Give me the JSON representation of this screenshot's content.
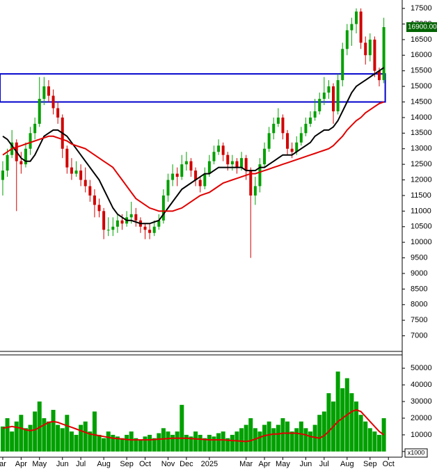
{
  "chart_data": [
    {
      "type": "candlestick",
      "ylim": [
        6500,
        17770
      ],
      "yticks": [
        7000,
        7500,
        8000,
        8500,
        9000,
        9500,
        10000,
        10500,
        11000,
        11500,
        12000,
        12500,
        13000,
        13500,
        14000,
        14500,
        15000,
        15500,
        16000,
        16500,
        17000,
        17500
      ],
      "xlim": [
        -0.6,
        87
      ],
      "up_color": "#00a000",
      "down_color": "#d00000",
      "ohlc": [
        [
          12000,
          12600,
          11500,
          12300
        ],
        [
          12300,
          13000,
          12100,
          12800
        ],
        [
          12800,
          13600,
          12700,
          13200
        ],
        [
          13200,
          13300,
          11000,
          12600
        ],
        [
          12600,
          12900,
          12200,
          12500
        ],
        [
          12500,
          13200,
          12400,
          13000
        ],
        [
          13000,
          13700,
          12800,
          13500
        ],
        [
          13500,
          14000,
          13300,
          13800
        ],
        [
          13800,
          15300,
          13700,
          14600
        ],
        [
          14600,
          15300,
          14400,
          15000
        ],
        [
          15000,
          15200,
          14500,
          14700
        ],
        [
          14700,
          14900,
          14100,
          14300
        ],
        [
          14300,
          14500,
          13800,
          14000
        ],
        [
          14000,
          14100,
          12700,
          13000
        ],
        [
          13000,
          13100,
          12200,
          12400
        ],
        [
          12400,
          12700,
          12000,
          12200
        ],
        [
          12200,
          12600,
          12100,
          12300
        ],
        [
          12300,
          12500,
          11800,
          12000
        ],
        [
          12000,
          12400,
          11600,
          11800
        ],
        [
          11800,
          12000,
          11300,
          11500
        ],
        [
          11500,
          11700,
          10800,
          11200
        ],
        [
          11200,
          11400,
          10800,
          11000
        ],
        [
          11000,
          11100,
          10100,
          10400
        ],
        [
          10400,
          10800,
          10200,
          10400
        ],
        [
          10400,
          10800,
          10200,
          10500
        ],
        [
          10500,
          10900,
          10300,
          10700
        ],
        [
          10700,
          10900,
          10400,
          10600
        ],
        [
          10600,
          11000,
          10500,
          10800
        ],
        [
          10800,
          11300,
          10600,
          10900
        ],
        [
          10900,
          11100,
          10500,
          10700
        ],
        [
          10700,
          10800,
          10300,
          10500
        ],
        [
          10500,
          10600,
          10100,
          10400
        ],
        [
          10400,
          10600,
          10100,
          10300
        ],
        [
          10300,
          10700,
          10200,
          10500
        ],
        [
          10500,
          10900,
          10400,
          10700
        ],
        [
          10700,
          11700,
          10600,
          11500
        ],
        [
          11500,
          12200,
          11300,
          12000
        ],
        [
          12000,
          12500,
          11800,
          12200
        ],
        [
          12200,
          12400,
          11800,
          12100
        ],
        [
          12100,
          12800,
          12000,
          12500
        ],
        [
          12500,
          12900,
          12300,
          12600
        ],
        [
          12600,
          12700,
          12100,
          12300
        ],
        [
          12300,
          12400,
          11800,
          12000
        ],
        [
          12000,
          12100,
          11600,
          11800
        ],
        [
          11800,
          12400,
          11700,
          12200
        ],
        [
          12200,
          12800,
          12100,
          12600
        ],
        [
          12600,
          13100,
          12500,
          12900
        ],
        [
          12900,
          13300,
          12800,
          13100
        ],
        [
          13100,
          13200,
          12600,
          12800
        ],
        [
          12800,
          12900,
          12300,
          12500
        ],
        [
          12500,
          12800,
          12300,
          12600
        ],
        [
          12600,
          12700,
          12200,
          12400
        ],
        [
          12400,
          12900,
          12300,
          12700
        ],
        [
          12700,
          12800,
          12000,
          12300
        ],
        [
          12300,
          12400,
          9500,
          11500
        ],
        [
          11500,
          12100,
          11200,
          11800
        ],
        [
          11800,
          12700,
          11600,
          12500
        ],
        [
          12500,
          13200,
          12400,
          13000
        ],
        [
          13000,
          13700,
          12900,
          13500
        ],
        [
          13500,
          14000,
          13300,
          13800
        ],
        [
          13800,
          14300,
          13700,
          14000
        ],
        [
          14000,
          14100,
          13300,
          13500
        ],
        [
          13500,
          13600,
          12800,
          13000
        ],
        [
          13000,
          13200,
          12700,
          12900
        ],
        [
          12900,
          13400,
          12800,
          13200
        ],
        [
          13200,
          13700,
          13100,
          13500
        ],
        [
          13500,
          14000,
          13400,
          13800
        ],
        [
          13800,
          14200,
          13700,
          14000
        ],
        [
          14000,
          14600,
          13900,
          14200
        ],
        [
          14200,
          14800,
          14100,
          14600
        ],
        [
          14600,
          15300,
          14400,
          14800
        ],
        [
          14800,
          15200,
          14600,
          15000
        ],
        [
          15000,
          15100,
          13800,
          14200
        ],
        [
          14200,
          15400,
          14100,
          15200
        ],
        [
          15200,
          16400,
          15000,
          16200
        ],
        [
          16200,
          17000,
          16000,
          16800
        ],
        [
          16800,
          17200,
          16300,
          17000
        ],
        [
          17000,
          17500,
          16700,
          17400
        ],
        [
          17400,
          17500,
          16200,
          16400
        ],
        [
          16400,
          16600,
          15700,
          16000
        ],
        [
          16000,
          16700,
          15800,
          16500
        ],
        [
          16500,
          16600,
          15300,
          15500
        ],
        [
          15500,
          15600,
          15000,
          15200
        ],
        [
          15200,
          17200,
          15100,
          16900
        ]
      ],
      "lines": [
        {
          "color": "#000000",
          "values": [
            13400,
            13300,
            13100,
            12900,
            12700,
            12600,
            12600,
            12800,
            13100,
            13400,
            13500,
            13600,
            13600,
            13500,
            13400,
            13200,
            13000,
            12800,
            12600,
            12400,
            12200,
            12000,
            11700,
            11400,
            11100,
            10900,
            10800,
            10700,
            10700,
            10650,
            10600,
            10600,
            10600,
            10650,
            10700,
            10900,
            11100,
            11300,
            11500,
            11700,
            11800,
            11900,
            12000,
            12100,
            12200,
            12200,
            12300,
            12400,
            12400,
            12400,
            12400,
            12400,
            12400,
            12300,
            12300,
            12300,
            12400,
            12400,
            12500,
            12600,
            12700,
            12800,
            12800,
            12800,
            12900,
            13000,
            13100,
            13200,
            13400,
            13500,
            13600,
            13600,
            13700,
            13900,
            14200,
            14500,
            14800,
            15000,
            15100,
            15200,
            15300,
            15400,
            15500,
            15600
          ]
        },
        {
          "color": "#e00000",
          "values": [
            12800,
            12900,
            13000,
            13050,
            13100,
            13150,
            13200,
            13250,
            13300,
            13350,
            13400,
            13400,
            13350,
            13300,
            13250,
            13150,
            13100,
            13050,
            13000,
            12900,
            12800,
            12700,
            12600,
            12500,
            12400,
            12200,
            12000,
            11800,
            11600,
            11400,
            11300,
            11200,
            11100,
            11050,
            11000,
            11000,
            11000,
            11000,
            11050,
            11100,
            11200,
            11300,
            11400,
            11500,
            11550,
            11600,
            11700,
            11800,
            11900,
            11950,
            12000,
            12050,
            12100,
            12150,
            12200,
            12200,
            12250,
            12300,
            12350,
            12400,
            12450,
            12500,
            12550,
            12600,
            12650,
            12700,
            12750,
            12800,
            12850,
            12900,
            12950,
            13000,
            13100,
            13250,
            13400,
            13600,
            13750,
            13900,
            14000,
            14150,
            14250,
            14350,
            14450,
            14500
          ]
        }
      ],
      "zone": {
        "color": "#0000cc",
        "range": [
          14500,
          15400
        ]
      },
      "last_price": {
        "value": 16900,
        "label": "16900.00"
      }
    },
    {
      "type": "bar",
      "ylim": [
        -3400,
        58000
      ],
      "yticks": [
        0,
        10000,
        20000,
        30000,
        40000,
        50000
      ],
      "xlim": [
        -0.6,
        87
      ],
      "color": "#00a000",
      "values": [
        15000,
        20000,
        12000,
        18000,
        22000,
        14000,
        16000,
        24000,
        30000,
        20000,
        18000,
        25000,
        16000,
        14000,
        22000,
        12000,
        10000,
        16000,
        18000,
        12000,
        24000,
        10000,
        8000,
        12000,
        10000,
        9000,
        8000,
        10000,
        12000,
        8000,
        7000,
        9000,
        10000,
        8000,
        11000,
        14000,
        12000,
        10000,
        12000,
        28000,
        10000,
        9000,
        12000,
        10000,
        8000,
        10000,
        9000,
        11000,
        12000,
        8000,
        10000,
        12000,
        14000,
        16000,
        20000,
        14000,
        12000,
        16000,
        18000,
        14000,
        16000,
        20000,
        18000,
        12000,
        14000,
        18000,
        14000,
        12000,
        16000,
        22000,
        24000,
        35000,
        30000,
        48000,
        38000,
        44000,
        35000,
        30000,
        22000,
        18000,
        14000,
        12000,
        10000,
        20000
      ],
      "lines": [
        {
          "color": "#e00000",
          "values": [
            14000,
            14500,
            15000,
            14500,
            14000,
            13000,
            12500,
            13000,
            14500,
            16000,
            17500,
            18000,
            17500,
            16500,
            15500,
            14500,
            13500,
            12500,
            11500,
            10500,
            10000,
            9500,
            9000,
            8500,
            8000,
            7800,
            7500,
            7200,
            7000,
            7000,
            7000,
            7000,
            7000,
            7200,
            7400,
            7600,
            7800,
            8000,
            8000,
            8000,
            8000,
            7800,
            7600,
            7400,
            7200,
            7000,
            7000,
            7000,
            7000,
            6800,
            6600,
            6400,
            6200,
            6000,
            6500,
            7500,
            8500,
            9500,
            10000,
            10500,
            10500,
            11000,
            11000,
            11000,
            11000,
            10500,
            10000,
            9000,
            8500,
            8000,
            9500,
            12000,
            15000,
            18000,
            20000,
            22000,
            24000,
            25000,
            24000,
            21000,
            18000,
            15000,
            12000,
            10000
          ]
        }
      ],
      "scale_note": "x1000",
      "xticks": [
        {
          "value": 0,
          "label": "ar"
        },
        {
          "value": 4,
          "label": "Apr"
        },
        {
          "value": 8,
          "label": "May"
        },
        {
          "value": 13,
          "label": "Jun"
        },
        {
          "value": 17,
          "label": "Jul"
        },
        {
          "value": 22,
          "label": "Aug"
        },
        {
          "value": 27,
          "label": "Sep"
        },
        {
          "value": 31,
          "label": "Oct"
        },
        {
          "value": 36,
          "label": "Nov"
        },
        {
          "value": 40,
          "label": "Dec"
        },
        {
          "value": 45,
          "label": "2025"
        },
        {
          "value": 53,
          "label": "Mar"
        },
        {
          "value": 57,
          "label": "Apr"
        },
        {
          "value": 61,
          "label": "May"
        },
        {
          "value": 66,
          "label": "Jun"
        },
        {
          "value": 70,
          "label": "Jul"
        },
        {
          "value": 75,
          "label": "Aug"
        },
        {
          "value": 80,
          "label": "Sep"
        },
        {
          "value": 84,
          "label": "Oct"
        }
      ]
    }
  ]
}
